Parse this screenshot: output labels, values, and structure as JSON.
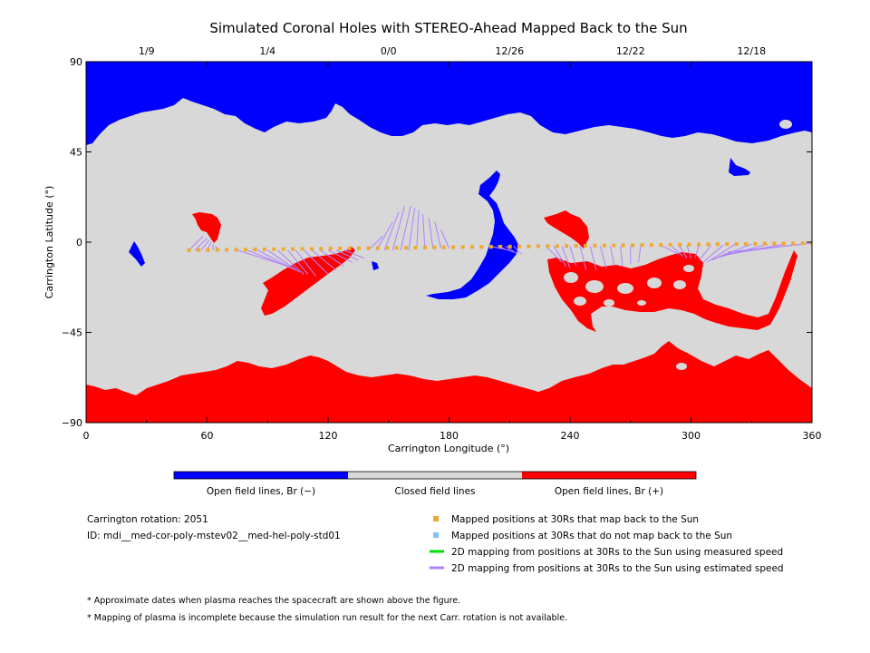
{
  "chart_data": {
    "type": "map",
    "title": "Simulated Coronal Holes with STEREO-Ahead Mapped Back to the Sun",
    "xlabel": "Carrington Longitude (°)",
    "ylabel": "Carrington Latitude (°)",
    "xlim": [
      0,
      360
    ],
    "ylim": [
      -90,
      90
    ],
    "x_ticks": [
      "0",
      "60",
      "120",
      "180",
      "240",
      "300",
      "360"
    ],
    "y_ticks": [
      "90",
      "45",
      "0",
      "−45",
      "−90"
    ],
    "top_date_labels": [
      {
        "lon": 30,
        "label": "1/9"
      },
      {
        "lon": 90,
        "label": "1/4"
      },
      {
        "lon": 150,
        "label": "0/0"
      },
      {
        "lon": 210,
        "label": "12/26"
      },
      {
        "lon": 270,
        "label": "12/22"
      },
      {
        "lon": 330,
        "label": "12/18"
      }
    ],
    "colorbar": [
      {
        "label": "Open field lines, Br (−)",
        "color": "#0000ff"
      },
      {
        "label": "Closed field lines",
        "color": "#d8d8d8"
      },
      {
        "label": "Open field lines, Br (+)",
        "color": "#ff0000"
      }
    ],
    "colors": {
      "negative_open": "#0000ff",
      "closed": "#d8d8d8",
      "positive_open": "#ff0000",
      "mapped_point": "#f0a830",
      "measured_mapping": "#00dd00",
      "estimated_mapping": "#b080ff"
    },
    "mapped_points": {
      "lon_start": 51,
      "lon_end": 360,
      "count": 67,
      "lat_start": -4,
      "lat_end": -0.5
    },
    "estimated_mapping_lines": [
      [
        51,
        -4,
        58,
        3
      ],
      [
        54,
        -4,
        60,
        2
      ],
      [
        57,
        -4,
        61,
        1
      ],
      [
        60,
        -4,
        62,
        0
      ],
      [
        63,
        -4,
        63,
        -1
      ],
      [
        66,
        -4,
        64,
        -2
      ],
      [
        75,
        -4,
        100,
        -12
      ],
      [
        80,
        -4,
        102,
        -13
      ],
      [
        85,
        -4,
        104,
        -14
      ],
      [
        90,
        -4,
        106,
        -15
      ],
      [
        95,
        -4,
        108,
        -16
      ],
      [
        100,
        -4,
        110,
        -16
      ],
      [
        104,
        -4,
        114,
        -17
      ],
      [
        108,
        -4,
        120,
        -16
      ],
      [
        112,
        -4,
        124,
        -14
      ],
      [
        116,
        -4,
        128,
        -12
      ],
      [
        120,
        -4,
        132,
        -10
      ],
      [
        124,
        -4,
        135,
        -9
      ],
      [
        128,
        -4,
        138,
        -8
      ],
      [
        140,
        -4,
        147,
        3
      ],
      [
        144,
        -4,
        152,
        10
      ],
      [
        148,
        -4,
        155,
        15
      ],
      [
        152,
        -4,
        158,
        18
      ],
      [
        156,
        -4,
        161,
        18
      ],
      [
        160,
        -4,
        163,
        17
      ],
      [
        164,
        -3,
        165,
        16
      ],
      [
        168,
        -3,
        167,
        14
      ],
      [
        172,
        -3,
        170,
        12
      ],
      [
        176,
        -3,
        173,
        10
      ],
      [
        180,
        -3,
        176,
        6
      ],
      [
        200,
        -2,
        210,
        -4
      ],
      [
        204,
        -2,
        212,
        -5
      ],
      [
        208,
        -2,
        214,
        -6
      ],
      [
        212,
        -2,
        216,
        -6
      ],
      [
        228,
        -2,
        236,
        -10
      ],
      [
        232,
        -2,
        238,
        -12
      ],
      [
        236,
        -2,
        240,
        -13
      ],
      [
        240,
        -2,
        243,
        -12
      ],
      [
        245,
        -2,
        248,
        -14
      ],
      [
        250,
        -2,
        253,
        -14
      ],
      [
        255,
        -2,
        258,
        -13
      ],
      [
        260,
        -2,
        262,
        -12
      ],
      [
        265,
        -2,
        266,
        -12
      ],
      [
        270,
        -2,
        270,
        -11
      ],
      [
        275,
        -2,
        274,
        -10
      ],
      [
        285,
        -1.5,
        294,
        -6
      ],
      [
        290,
        -1.5,
        296,
        -7
      ],
      [
        294,
        -1.5,
        298,
        -8
      ],
      [
        298,
        -1.5,
        300,
        -8
      ],
      [
        304,
        -1.5,
        302,
        -8
      ],
      [
        310,
        -1.5,
        304,
        -9
      ],
      [
        316,
        -1.5,
        306,
        -10
      ],
      [
        322,
        -1,
        308,
        -10
      ],
      [
        330,
        -1,
        310,
        -9
      ],
      [
        338,
        -1,
        312,
        -8
      ],
      [
        346,
        -1,
        314,
        -7
      ],
      [
        354,
        -1,
        316,
        -6
      ],
      [
        360,
        -0.5,
        318,
        -5
      ]
    ]
  },
  "legend": {
    "rotation": "Carrington rotation: 2051",
    "id": "ID: mdi__med-cor-poly-mstev02__med-hel-poly-std01",
    "items": [
      {
        "label": "Mapped positions at 30Rs that map back to the Sun",
        "color": "#f0a830",
        "marker": "square"
      },
      {
        "label": "Mapped positions at 30Rs that do not map back to the Sun",
        "color": "#80c0ff",
        "marker": "square"
      },
      {
        "label": "2D mapping from positions at 30Rs to the Sun using measured speed",
        "color": "#00dd00",
        "marker": "line"
      },
      {
        "label": "2D mapping from positions at 30Rs to the Sun using estimated speed",
        "color": "#b080ff",
        "marker": "line"
      }
    ]
  },
  "notes": [
    "* Approximate dates when plasma reaches the spacecraft are shown above the figure.",
    "* Mapping of plasma is incomplete because the simulation run result for the next Carr. rotation is not available."
  ]
}
